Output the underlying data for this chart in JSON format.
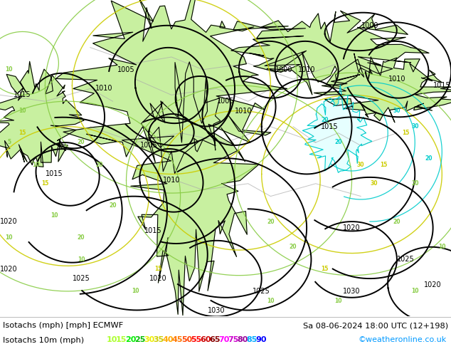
{
  "title_left": "Isotachs (mph) [mph] ECMWF",
  "title_right": "Sa 08-06-2024 18:00 UTC (12+198)",
  "legend_label": "Isotachs 10m (mph)",
  "legend_values": [
    10,
    15,
    20,
    25,
    30,
    35,
    40,
    45,
    50,
    55,
    60,
    65,
    70,
    75,
    80,
    85,
    90
  ],
  "legend_colors": [
    "#adff2f",
    "#adff2f",
    "#00ee00",
    "#00bb00",
    "#eeee00",
    "#cccc00",
    "#ffaa00",
    "#ff7700",
    "#ff4400",
    "#ff0000",
    "#cc0000",
    "#880000",
    "#ff00ff",
    "#cc00cc",
    "#990099",
    "#00aaff",
    "#0000ff"
  ],
  "copyright": "©weatheronline.co.uk",
  "bg_color": "#ffffff",
  "figsize": [
    6.34,
    4.9
  ],
  "dpi": 100,
  "map_bg_light": "#f5f5f5",
  "map_green_light": "#c8f0a0",
  "map_green_mid": "#a0e070",
  "isobar_color": "#000000",
  "isotach_green": "#90ee90",
  "isotach_yellow": "#ffff00",
  "isotach_orange": "#ffa500",
  "isotach_cyan": "#00cccc",
  "gray_contour": "#888888"
}
